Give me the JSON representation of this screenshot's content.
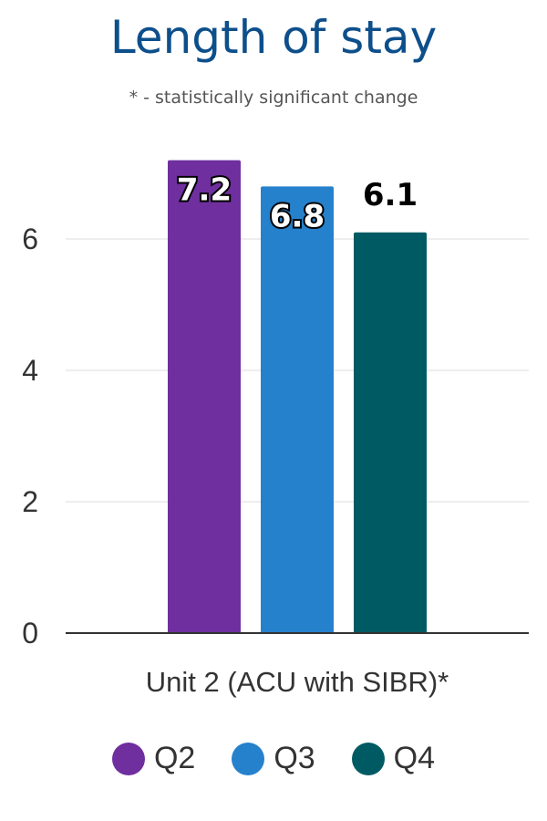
{
  "chart_data": {
    "type": "bar",
    "title": "Length of stay",
    "subtitle": "* - statistically significant change",
    "categories": [
      "Unit 2 (ACU with SIBR)*"
    ],
    "series": [
      {
        "name": "Q2",
        "values": [
          7.2
        ],
        "color": "#6f2f9e"
      },
      {
        "name": "Q3",
        "values": [
          6.8
        ],
        "color": "#2681cc"
      },
      {
        "name": "Q4",
        "values": [
          6.1
        ],
        "color": "#005a64"
      }
    ],
    "data_labels": [
      "7.2",
      "6.8",
      "6.1"
    ],
    "ylim": [
      0,
      8
    ],
    "yticks": [
      "0",
      "2",
      "4",
      "6"
    ],
    "grid": true,
    "legend_position": "bottom"
  }
}
